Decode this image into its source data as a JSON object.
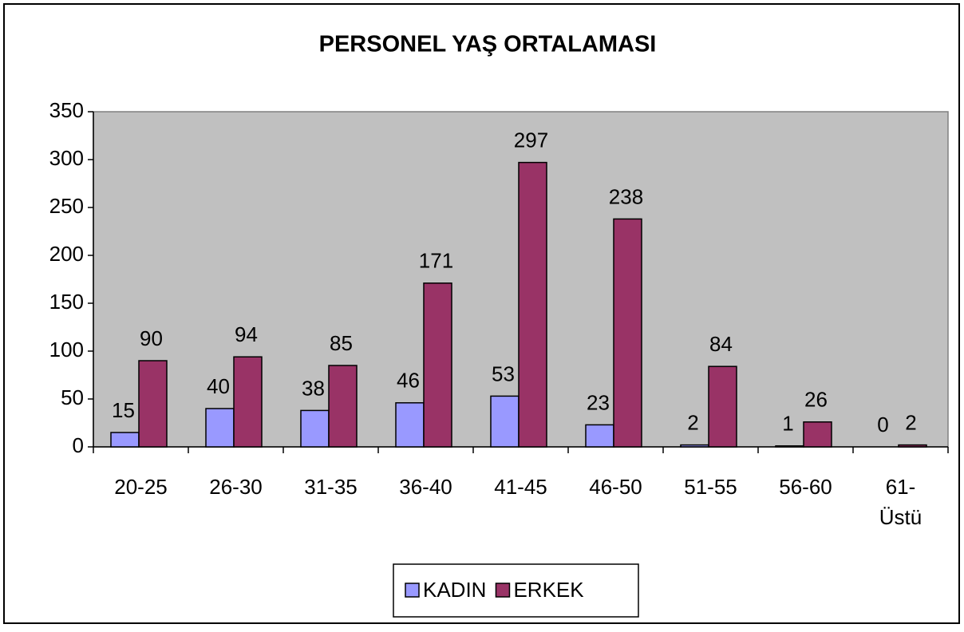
{
  "chart_data": {
    "type": "bar",
    "title": "PERSONEL YAŞ ORTALAMASI",
    "categories": [
      "20-25",
      "26-30",
      "31-35",
      "36-40",
      "41-45",
      "46-50",
      "51-55",
      "56-60",
      "61- Üstü"
    ],
    "series": [
      {
        "name": "KADIN",
        "color": "#9999ff",
        "values": [
          15,
          40,
          38,
          46,
          53,
          23,
          2,
          1,
          0
        ]
      },
      {
        "name": "ERKEK",
        "color": "#993366",
        "values": [
          90,
          94,
          85,
          171,
          297,
          238,
          84,
          26,
          2
        ]
      }
    ],
    "ylim": [
      0,
      350
    ],
    "yticks": [
      0,
      50,
      100,
      150,
      200,
      250,
      300,
      350
    ],
    "legend": "bottom",
    "plot_background": "#c0c0c0"
  }
}
